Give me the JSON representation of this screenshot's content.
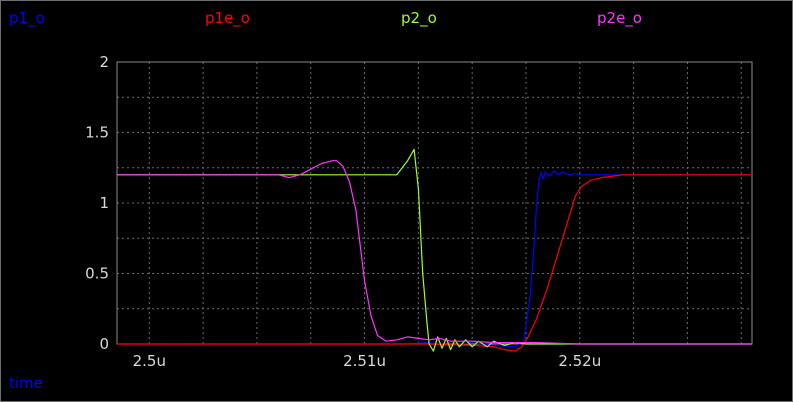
{
  "legend": [
    {
      "label": "p1_o",
      "color": "#0000ff"
    },
    {
      "label": "p1e_o",
      "color": "#ff0000"
    },
    {
      "label": "p2_o",
      "color": "#9aff2e"
    },
    {
      "label": "p2e_o",
      "color": "#ff33ff"
    }
  ],
  "axis_label": {
    "text": "time",
    "color": "#0000ff"
  },
  "chart_data": {
    "type": "line",
    "title": "",
    "xlabel": "time",
    "ylabel": "",
    "xlim": [
      2.4985,
      2.528
    ],
    "ylim": [
      0,
      2
    ],
    "grid": true,
    "x_ticks": [
      {
        "value": 2.5,
        "label": "2.5u"
      },
      {
        "value": 2.51,
        "label": "2.51u"
      },
      {
        "value": 2.52,
        "label": "2.52u"
      }
    ],
    "y_ticks": [
      {
        "value": 0,
        "label": "0"
      },
      {
        "value": 0.5,
        "label": "0.5"
      },
      {
        "value": 1,
        "label": "1"
      },
      {
        "value": 1.5,
        "label": "1.5"
      },
      {
        "value": 2,
        "label": "2"
      }
    ],
    "series": [
      {
        "name": "p1_o",
        "color": "#0000ff",
        "points": [
          [
            2.4985,
            0.0
          ],
          [
            2.512,
            0.0
          ],
          [
            2.513,
            0.01
          ],
          [
            2.514,
            -0.01
          ],
          [
            2.515,
            0.01
          ],
          [
            2.516,
            -0.01
          ],
          [
            2.517,
            -0.02
          ],
          [
            2.5174,
            0.02
          ],
          [
            2.5177,
            0.35
          ],
          [
            2.5179,
            0.75
          ],
          [
            2.518,
            1.0
          ],
          [
            2.5181,
            1.15
          ],
          [
            2.5182,
            1.22
          ],
          [
            2.5183,
            1.17
          ],
          [
            2.5184,
            1.22
          ],
          [
            2.5186,
            1.19
          ],
          [
            2.5188,
            1.23
          ],
          [
            2.519,
            1.2
          ],
          [
            2.5192,
            1.22
          ],
          [
            2.5195,
            1.2
          ],
          [
            2.5198,
            1.21
          ],
          [
            2.52,
            1.2
          ],
          [
            2.521,
            1.2
          ],
          [
            2.528,
            1.2
          ]
        ]
      },
      {
        "name": "p1e_o",
        "color": "#ff0000",
        "points": [
          [
            2.4985,
            0.0
          ],
          [
            2.512,
            0.0
          ],
          [
            2.513,
            0.0
          ],
          [
            2.515,
            -0.01
          ],
          [
            2.516,
            -0.02
          ],
          [
            2.5165,
            -0.04
          ],
          [
            2.517,
            -0.05
          ],
          [
            2.5173,
            -0.02
          ],
          [
            2.5176,
            0.05
          ],
          [
            2.518,
            0.18
          ],
          [
            2.5185,
            0.4
          ],
          [
            2.519,
            0.65
          ],
          [
            2.5195,
            0.9
          ],
          [
            2.5198,
            1.05
          ],
          [
            2.5201,
            1.12
          ],
          [
            2.5205,
            1.16
          ],
          [
            2.521,
            1.18
          ],
          [
            2.522,
            1.2
          ],
          [
            2.528,
            1.2
          ]
        ]
      },
      {
        "name": "p2_o",
        "color": "#9aff2e",
        "points": [
          [
            2.4985,
            1.2
          ],
          [
            2.503,
            1.2
          ],
          [
            2.508,
            1.2
          ],
          [
            2.5115,
            1.2
          ],
          [
            2.512,
            1.3
          ],
          [
            2.5123,
            1.38
          ],
          [
            2.5125,
            1.1
          ],
          [
            2.5127,
            0.5
          ],
          [
            2.5129,
            0.15
          ],
          [
            2.513,
            0.0
          ],
          [
            2.5132,
            -0.05
          ],
          [
            2.5134,
            0.05
          ],
          [
            2.5136,
            -0.03
          ],
          [
            2.5138,
            0.04
          ],
          [
            2.514,
            -0.04
          ],
          [
            2.5142,
            0.03
          ],
          [
            2.5144,
            -0.02
          ],
          [
            2.5147,
            0.03
          ],
          [
            2.515,
            -0.02
          ],
          [
            2.5153,
            0.02
          ],
          [
            2.5157,
            -0.02
          ],
          [
            2.516,
            0.02
          ],
          [
            2.5165,
            -0.01
          ],
          [
            2.517,
            0.01
          ],
          [
            2.5175,
            0.0
          ],
          [
            2.52,
            0.0
          ],
          [
            2.528,
            0.0
          ]
        ]
      },
      {
        "name": "p2e_o",
        "color": "#ff33ff",
        "points": [
          [
            2.4985,
            1.2
          ],
          [
            2.506,
            1.2
          ],
          [
            2.5065,
            1.18
          ],
          [
            2.507,
            1.2
          ],
          [
            2.5075,
            1.24
          ],
          [
            2.508,
            1.28
          ],
          [
            2.5085,
            1.3
          ],
          [
            2.5087,
            1.3
          ],
          [
            2.509,
            1.26
          ],
          [
            2.5093,
            1.15
          ],
          [
            2.5096,
            0.95
          ],
          [
            2.5098,
            0.7
          ],
          [
            2.51,
            0.45
          ],
          [
            2.5103,
            0.2
          ],
          [
            2.5106,
            0.06
          ],
          [
            2.511,
            0.02
          ],
          [
            2.5115,
            0.03
          ],
          [
            2.512,
            0.05
          ],
          [
            2.5125,
            0.04
          ],
          [
            2.513,
            0.03
          ],
          [
            2.5135,
            0.04
          ],
          [
            2.514,
            0.02
          ],
          [
            2.515,
            0.02
          ],
          [
            2.516,
            0.01
          ],
          [
            2.518,
            0.01
          ],
          [
            2.52,
            0.0
          ],
          [
            2.528,
            0.0
          ]
        ]
      }
    ]
  }
}
